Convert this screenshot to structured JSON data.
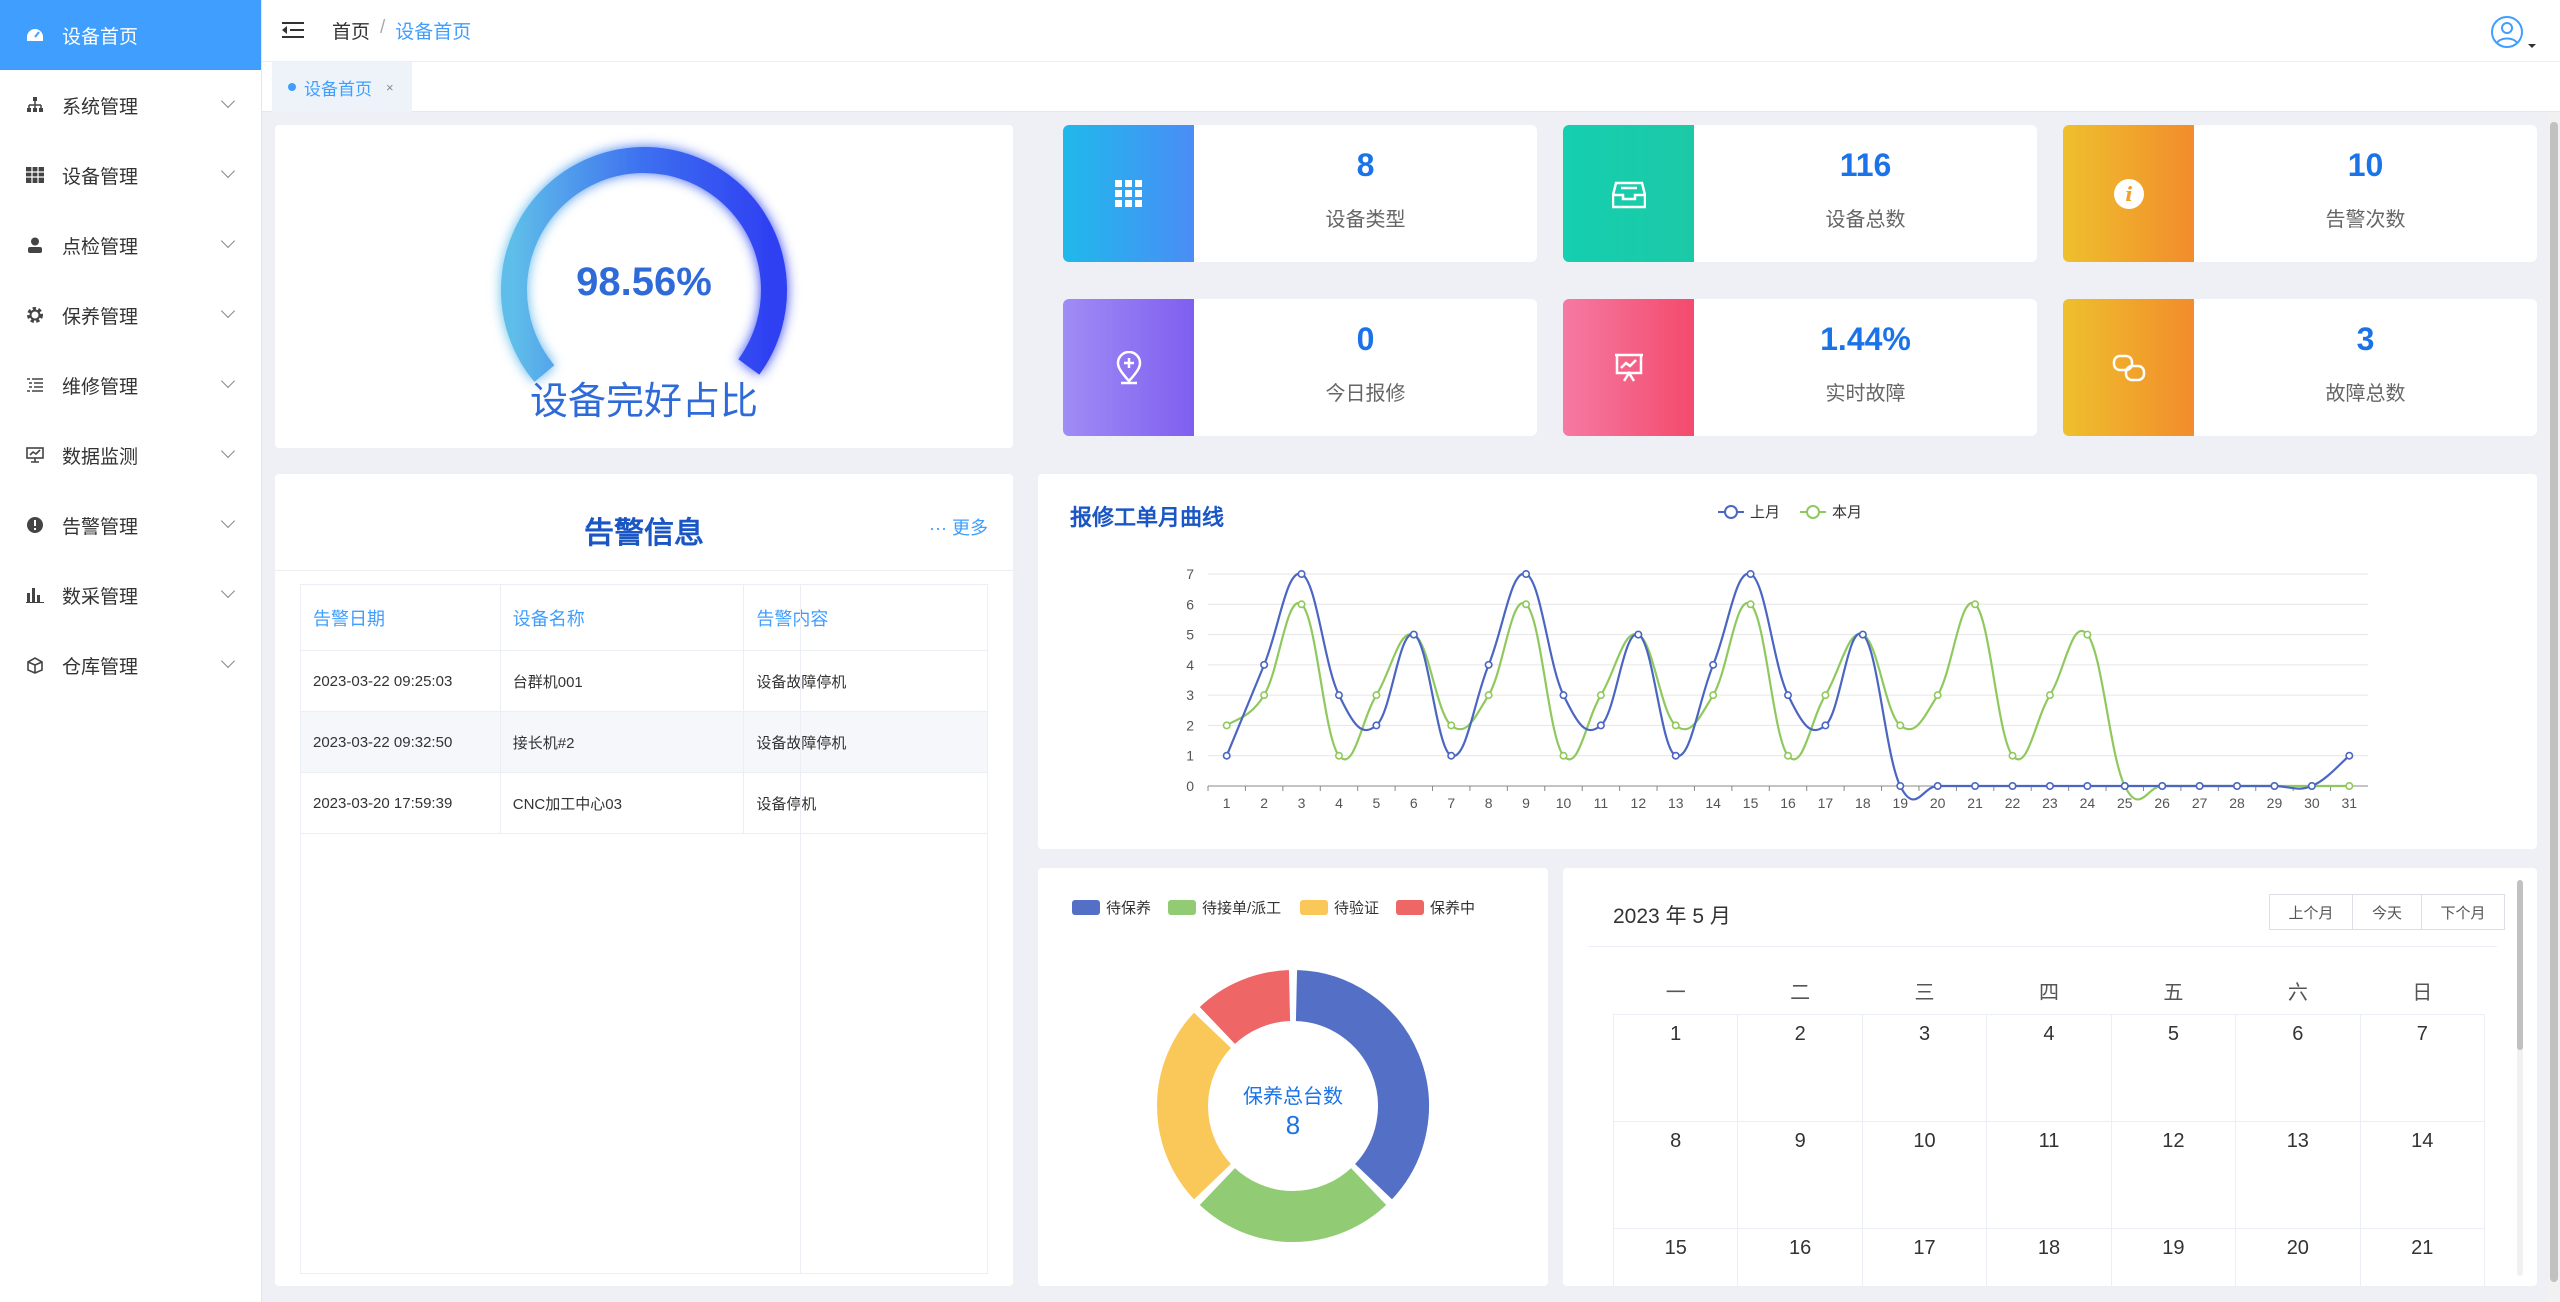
{
  "sidebar": {
    "items": [
      {
        "label": "设备首页",
        "icon": "dashboard-icon"
      },
      {
        "label": "系统管理",
        "icon": "sitemap-icon"
      },
      {
        "label": "设备管理",
        "icon": "grid-icon"
      },
      {
        "label": "点检管理",
        "icon": "user-icon"
      },
      {
        "label": "保养管理",
        "icon": "gear-icon"
      },
      {
        "label": "维修管理",
        "icon": "list-icon"
      },
      {
        "label": "数据监测",
        "icon": "monitor-icon"
      },
      {
        "label": "告警管理",
        "icon": "alert-icon"
      },
      {
        "label": "数采管理",
        "icon": "bar-chart-icon"
      },
      {
        "label": "仓库管理",
        "icon": "box-icon"
      }
    ]
  },
  "header": {
    "breadcrumb": [
      "首页",
      "设备首页"
    ],
    "tab": {
      "label": "设备首页",
      "close": "×"
    }
  },
  "gauge": {
    "value": "98.56%",
    "fraction": 0.9856,
    "label": "设备完好占比"
  },
  "stats": [
    {
      "value": "8",
      "label": "设备类型",
      "icon": "grid-icon"
    },
    {
      "value": "116",
      "label": "设备总数",
      "icon": "inbox-icon"
    },
    {
      "value": "10",
      "label": "告警次数",
      "icon": "info-icon"
    },
    {
      "value": "0",
      "label": "今日报修",
      "icon": "map-pin-icon"
    },
    {
      "value": "1.44%",
      "label": "实时故障",
      "icon": "presentation-icon"
    },
    {
      "value": "3",
      "label": "故障总数",
      "icon": "copy-icon"
    }
  ],
  "alerts": {
    "title": "告警信息",
    "more": "··· 更多",
    "columns": [
      "告警日期",
      "设备名称",
      "告警内容"
    ],
    "rows": [
      [
        "2023-03-22 09:25:03",
        "台群机001",
        "设备故障停机"
      ],
      [
        "2023-03-22 09:32:50",
        "接长机#2",
        "设备故障停机"
      ],
      [
        "2023-03-20 17:59:39",
        "CNC加工中心03",
        "设备停机"
      ]
    ]
  },
  "chart_data": [
    {
      "type": "line",
      "title": "报修工单月曲线",
      "x": [
        1,
        2,
        3,
        4,
        5,
        6,
        7,
        8,
        9,
        10,
        11,
        12,
        13,
        14,
        15,
        16,
        17,
        18,
        19,
        20,
        21,
        22,
        23,
        24,
        25,
        26,
        27,
        28,
        29,
        30,
        31
      ],
      "ylim": [
        0,
        7
      ],
      "yticks": [
        0,
        1,
        2,
        3,
        4,
        5,
        6,
        7
      ],
      "legend_position": "top-center",
      "grid": true,
      "series": [
        {
          "name": "上月",
          "color": "#4a65c2",
          "values": [
            1,
            4,
            7,
            3,
            2,
            5,
            1,
            4,
            7,
            3,
            2,
            5,
            1,
            4,
            7,
            3,
            2,
            5,
            0,
            0,
            0,
            0,
            0,
            0,
            0,
            0,
            0,
            0,
            0,
            0,
            1
          ]
        },
        {
          "name": "本月",
          "color": "#8fc95e",
          "values": [
            2,
            3,
            6,
            1,
            3,
            5,
            2,
            3,
            6,
            1,
            3,
            5,
            2,
            3,
            6,
            1,
            3,
            5,
            2,
            3,
            6,
            1,
            3,
            5,
            0,
            0,
            0,
            0,
            0,
            0,
            0
          ]
        }
      ]
    },
    {
      "type": "pie",
      "categories": [
        "待保养",
        "待接单/派工",
        "待验证",
        "保养中"
      ],
      "values": [
        3,
        2,
        2,
        1
      ],
      "colors": [
        "#5470c6",
        "#91cc75",
        "#fac858",
        "#ee6666"
      ],
      "center_label": "保养总台数",
      "center_value": "8",
      "legend_position": "top"
    }
  ],
  "calendar": {
    "title": "2023 年 5 月",
    "buttons": [
      "上个月",
      "今天",
      "下个月"
    ],
    "weekdays": [
      "一",
      "二",
      "三",
      "四",
      "五",
      "六",
      "日"
    ],
    "weeks": [
      [
        "1",
        "2",
        "3",
        "4",
        "5",
        "6",
        "7"
      ],
      [
        "8",
        "9",
        "10",
        "11",
        "12",
        "13",
        "14"
      ],
      [
        "15",
        "16",
        "17",
        "18",
        "19",
        "20",
        "21"
      ]
    ]
  },
  "colors": {
    "primary": "#409eff",
    "title_blue": "#1a56c4"
  }
}
